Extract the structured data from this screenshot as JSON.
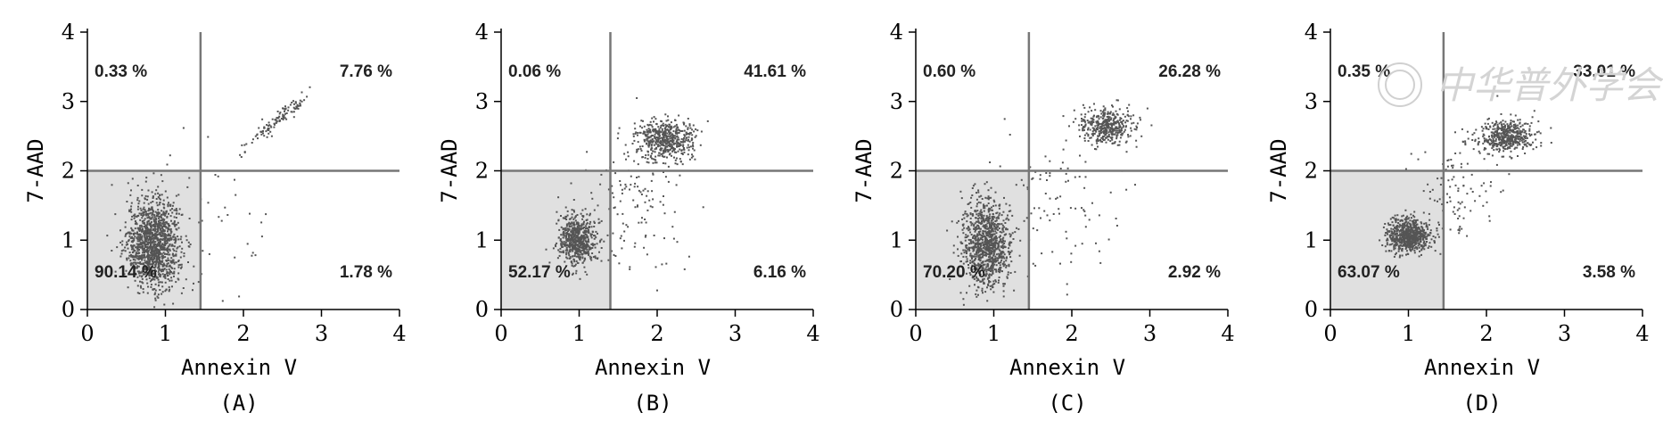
{
  "chart_data": [
    {
      "type": "scatter",
      "panel_label": "(A)",
      "xlabel": "Annexin V",
      "ylabel": "7-AAD",
      "xlim": [
        0,
        4
      ],
      "ylim": [
        0,
        4
      ],
      "xticks": [
        "0",
        "1",
        "2",
        "3",
        "4"
      ],
      "yticks": [
        "0",
        "1",
        "2",
        "3",
        "4"
      ],
      "gate": {
        "x": 1.45,
        "y": 2.0
      },
      "quadrants": {
        "upper_left": "0.33 %",
        "upper_right": "7.76 %",
        "lower_left": "90.14 %",
        "lower_right": "1.78 %"
      },
      "clusters": [
        {
          "cx": 0.85,
          "cy": 0.95,
          "sx": 0.17,
          "sy": 0.32,
          "n": 1300
        },
        {
          "cx": 2.45,
          "cy": 2.75,
          "sx": 0.2,
          "sy": 0.19,
          "n": 110,
          "along_diagonal": true
        },
        {
          "cx": 1.5,
          "cy": 1.2,
          "sx": 0.5,
          "sy": 0.6,
          "n": 45
        }
      ]
    },
    {
      "type": "scatter",
      "panel_label": "(B)",
      "xlabel": "Annexin V",
      "ylabel": "7-AAD",
      "xlim": [
        0,
        4
      ],
      "ylim": [
        0,
        4
      ],
      "xticks": [
        "0",
        "1",
        "2",
        "3",
        "4"
      ],
      "yticks": [
        "0",
        "1",
        "2",
        "3",
        "4"
      ],
      "gate": {
        "x": 1.4,
        "y": 2.0
      },
      "quadrants": {
        "upper_left": "0.06 %",
        "upper_right": "41.61 %",
        "lower_left": "52.17 %",
        "lower_right": "6.16 %"
      },
      "clusters": [
        {
          "cx": 0.98,
          "cy": 1.0,
          "sx": 0.13,
          "sy": 0.17,
          "n": 600
        },
        {
          "cx": 2.1,
          "cy": 2.45,
          "sx": 0.2,
          "sy": 0.15,
          "n": 520
        },
        {
          "cx": 1.7,
          "cy": 1.5,
          "sx": 0.35,
          "sy": 0.45,
          "n": 120
        }
      ]
    },
    {
      "type": "scatter",
      "panel_label": "(C)",
      "xlabel": "Annexin V",
      "ylabel": "7-AAD",
      "xlim": [
        0,
        4
      ],
      "ylim": [
        0,
        4
      ],
      "xticks": [
        "0",
        "1",
        "2",
        "3",
        "4"
      ],
      "yticks": [
        "0",
        "1",
        "2",
        "3",
        "4"
      ],
      "gate": {
        "x": 1.45,
        "y": 2.0
      },
      "quadrants": {
        "upper_left": "0.60 %",
        "upper_right": "26.28 %",
        "lower_left": "70.20 %",
        "lower_right": "2.92 %"
      },
      "clusters": [
        {
          "cx": 0.92,
          "cy": 0.95,
          "sx": 0.15,
          "sy": 0.33,
          "n": 1000
        },
        {
          "cx": 2.45,
          "cy": 2.65,
          "sx": 0.17,
          "sy": 0.13,
          "n": 420
        },
        {
          "cx": 1.8,
          "cy": 1.6,
          "sx": 0.45,
          "sy": 0.5,
          "n": 90
        }
      ]
    },
    {
      "type": "scatter",
      "panel_label": "(D)",
      "xlabel": "Annexin V",
      "ylabel": "7-AAD",
      "xlim": [
        0,
        4
      ],
      "ylim": [
        0,
        4
      ],
      "xticks": [
        "0",
        "1",
        "2",
        "3",
        "4"
      ],
      "yticks": [
        "0",
        "1",
        "2",
        "3",
        "4"
      ],
      "gate": {
        "x": 1.45,
        "y": 2.0
      },
      "quadrants": {
        "upper_left": "0.35 %",
        "upper_right": "33.01 %",
        "lower_left": "63.07 %",
        "lower_right": "3.58 %"
      },
      "clusters": [
        {
          "cx": 1.0,
          "cy": 1.07,
          "sx": 0.13,
          "sy": 0.12,
          "n": 700
        },
        {
          "cx": 2.25,
          "cy": 2.5,
          "sx": 0.17,
          "sy": 0.13,
          "n": 480
        },
        {
          "cx": 1.6,
          "cy": 1.65,
          "sx": 0.3,
          "sy": 0.4,
          "n": 110
        }
      ]
    }
  ],
  "watermark": {
    "text": "中华普外学会",
    "color": "#d4d4d4"
  }
}
